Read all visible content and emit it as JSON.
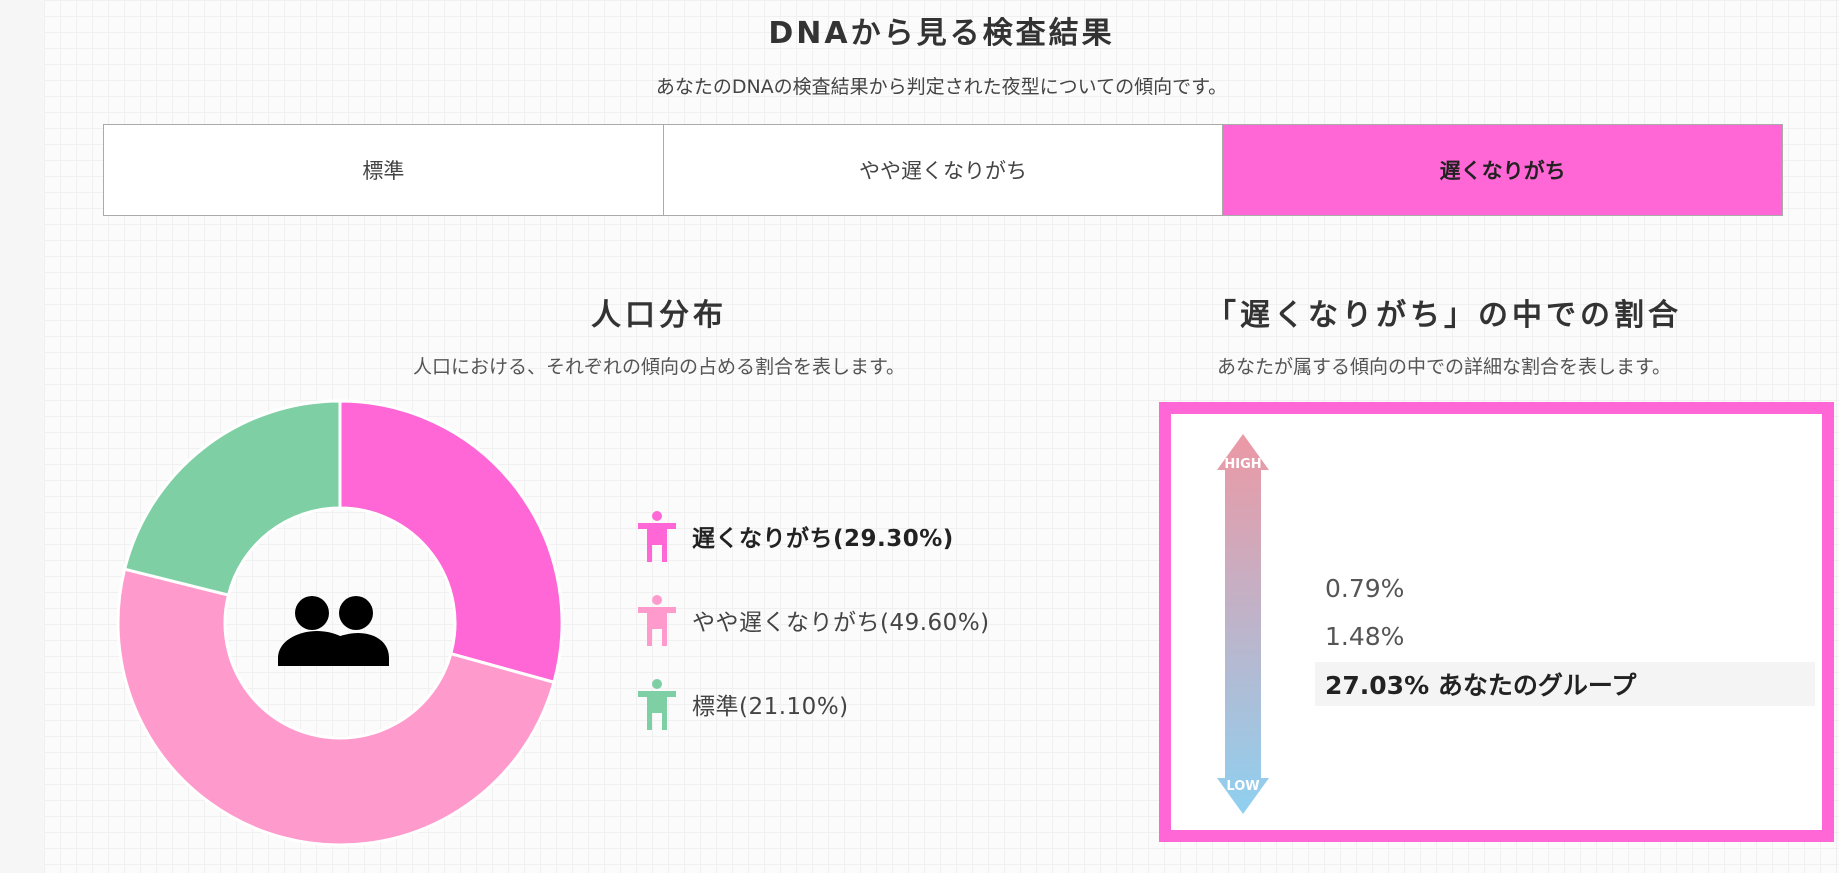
{
  "header": {
    "title": "DNAから見る検査結果",
    "subtitle": "あなたのDNAの検査結果から判定された夜型についての傾向です。"
  },
  "tabs": [
    {
      "label": "標準"
    },
    {
      "label": "やや遅くなりがち"
    },
    {
      "label": "遅くなりがち"
    }
  ],
  "active_tab": "遅くなりがち",
  "population": {
    "title": "人口分布",
    "subtitle": "人口における、それぞれの傾向の占める割合を表します。",
    "center_icon": "group-people-icon",
    "legend": [
      {
        "label": "遅くなりがち(29.30%)",
        "color": "#ff66d6",
        "icon": "person-icon"
      },
      {
        "label": "やや遅くなりがち(49.60%)",
        "color": "#ff9bcc",
        "icon": "person-icon"
      },
      {
        "label": "標準(21.10%)",
        "color": "#7fcfa5",
        "icon": "person-icon"
      }
    ]
  },
  "chart_data": {
    "type": "pie",
    "categories": [
      "遅くなりがち",
      "やや遅くなりがち",
      "標準"
    ],
    "values": [
      29.3,
      49.6,
      21.1
    ],
    "colors": [
      "#ff66d6",
      "#ff9bcc",
      "#7fcfa5"
    ],
    "title": "",
    "legend": "right"
  },
  "detail": {
    "title": "「遅くなりがち」の中での割合",
    "subtitle": "あなたが属する傾向の中での詳細な割合を表します。",
    "high_label": "HIGH",
    "low_label": "LOW",
    "rates": [
      {
        "text": "0.79%"
      },
      {
        "text": "1.48%"
      },
      {
        "text": "27.03% あなたのグループ"
      }
    ],
    "accent_color": "#ff66d6"
  }
}
